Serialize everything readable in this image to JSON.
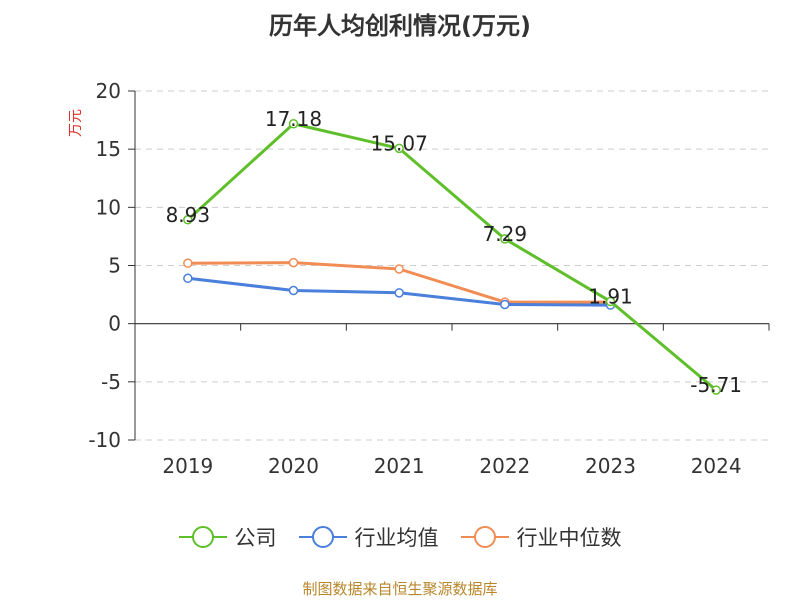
{
  "chart_data": {
    "type": "line",
    "title": "历年人均创利情况(万元)",
    "ylabel": "万元",
    "xlabel": "",
    "categories": [
      "2019",
      "2020",
      "2021",
      "2022",
      "2023",
      "2024"
    ],
    "ylim": [
      -10,
      20
    ],
    "yticks": [
      "20",
      "15",
      "10",
      "5",
      "0",
      "-5",
      "-10"
    ],
    "grid": true,
    "legend_position": "bottom",
    "series": [
      {
        "name": "公司",
        "color": "#5fbf2a",
        "values": [
          8.93,
          17.18,
          15.07,
          7.29,
          1.91,
          -5.71
        ],
        "labels": [
          "8.93",
          "17.18",
          "15.07",
          "7.29",
          "1.91",
          "-5.71"
        ]
      },
      {
        "name": "行业均值",
        "color": "#4a7fdc",
        "values": [
          3.9,
          2.85,
          2.65,
          1.65,
          1.6,
          null
        ]
      },
      {
        "name": "行业中位数",
        "color": "#f28c55",
        "values": [
          5.2,
          5.25,
          4.7,
          1.85,
          1.85,
          null
        ]
      }
    ],
    "unit_label_color": "#e0302a"
  },
  "footer": {
    "source": "制图数据来自恒生聚源数据库"
  }
}
